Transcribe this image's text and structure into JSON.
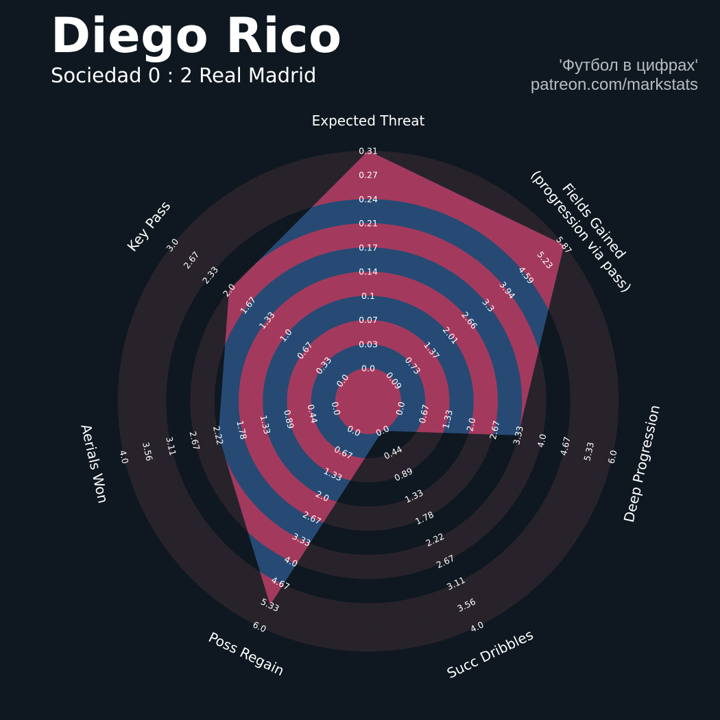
{
  "header": {
    "title": "Diego Rico",
    "subtitle": "Sociedad 0 : 2 Real Madrid",
    "credit_line1": "'Футбол в цифрах'",
    "credit_line2": "patreon.com/markstats"
  },
  "colors": {
    "background": "#0f1820",
    "ring_faint": "#28232b",
    "ring_pink": "#a33a5e",
    "ring_blue": "#264a74",
    "axis_label": "#ffffff",
    "tick_label": "#ffffff"
  },
  "chart_data": {
    "type": "radar",
    "title": "Diego Rico",
    "grid": true,
    "axes": [
      {
        "name": "Expected Threat",
        "min": 0.0,
        "max": 0.31,
        "value": 0.31,
        "ticks": [
          "0.0",
          "0.03",
          "0.07",
          "0.1",
          "0.14",
          "0.17",
          "0.21",
          "0.24",
          "0.27",
          "0.31"
        ]
      },
      {
        "name": "Fields Gained\n(progression via pass)",
        "min": 0.0,
        "max": 5.87,
        "value": 5.87,
        "ticks": [
          "0.09",
          "0.73",
          "1.37",
          "2.01",
          "2.66",
          "3.3",
          "3.94",
          "4.59",
          "5.23",
          "5.87"
        ]
      },
      {
        "name": "Deep Progression",
        "min": 0.0,
        "max": 6.0,
        "value": 3.33,
        "ticks": [
          "0.0",
          "0.67",
          "1.33",
          "2.0",
          "2.67",
          "3.33",
          "4.0",
          "4.67",
          "5.33",
          "6.0"
        ]
      },
      {
        "name": "Succ Dribbles",
        "min": 0.0,
        "max": 4.0,
        "value": 0.0,
        "ticks": [
          "0.0",
          "0.44",
          "0.89",
          "1.33",
          "1.78",
          "2.22",
          "2.67",
          "3.11",
          "3.56",
          "4.0"
        ]
      },
      {
        "name": "Poss Regain",
        "min": 0.0,
        "max": 6.0,
        "value": 5.33,
        "ticks": [
          "0.0",
          "0.67",
          "1.33",
          "2.0",
          "2.67",
          "3.33",
          "4.0",
          "4.67",
          "5.33",
          "6.0"
        ]
      },
      {
        "name": "Aerials Won",
        "min": 0.0,
        "max": 4.0,
        "value": 2.22,
        "ticks": [
          "0.0",
          "0.44",
          "0.89",
          "1.33",
          "1.78",
          "2.22",
          "2.67",
          "3.11",
          "3.56",
          "4.0"
        ]
      },
      {
        "name": "Key Pass",
        "min": 0.0,
        "max": 3.0,
        "value": 2.0,
        "ticks": [
          "0.0",
          "0.33",
          "0.67",
          "1.0",
          "1.33",
          "1.67",
          "2.0",
          "2.33",
          "2.67",
          "3.0"
        ]
      }
    ]
  }
}
